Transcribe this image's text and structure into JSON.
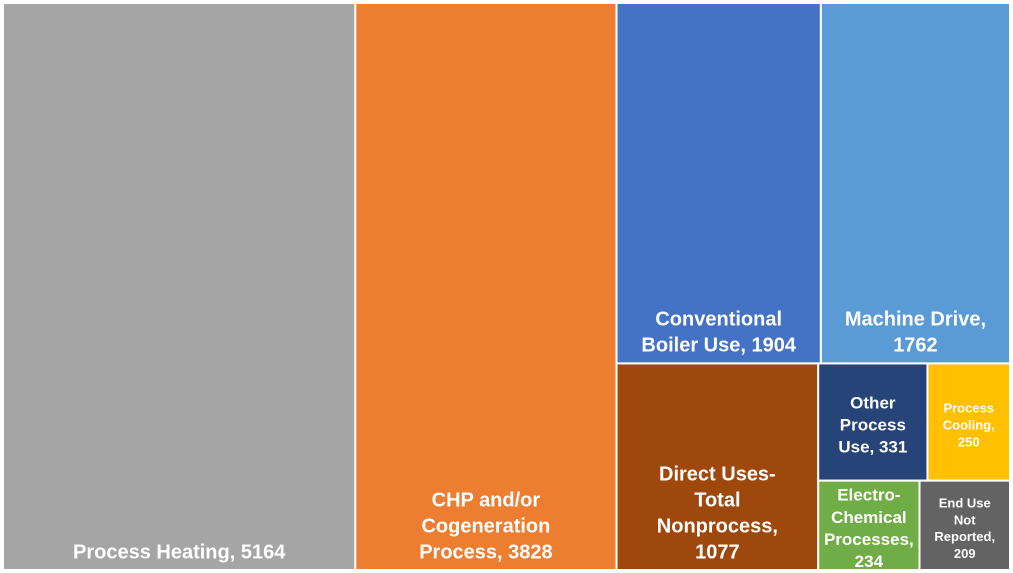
{
  "chart_data": {
    "type": "treemap",
    "values": [
      5164,
      3828,
      1904,
      1762,
      1077,
      331,
      250,
      234,
      209
    ],
    "value_labels": [
      "Process Heating, 5164",
      "CHP and/or Cogeneration Process, 3828",
      "Conventional Boiler Use, 1904",
      "Machine Drive, 1762",
      "Direct Uses-Total Nonprocess, 1077",
      "Other Process Use, 331",
      "Process Cooling, 250",
      "Electro-Chemical Processes, 234",
      "End Use Not Reported, 209"
    ],
    "colors": [
      "#a5a5a5",
      "#ed7d31",
      "#4472c4",
      "#5b9bd5",
      "#9e480e",
      "#264478",
      "#ffc000",
      "#70ad47",
      "#636363"
    ]
  }
}
